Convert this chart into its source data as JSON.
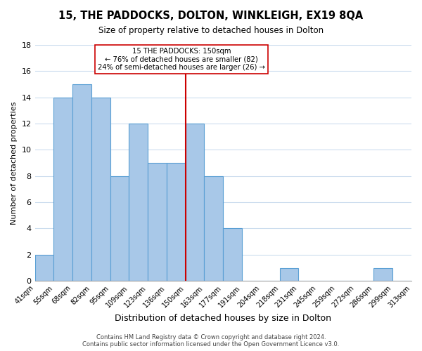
{
  "title": "15, THE PADDOCKS, DOLTON, WINKLEIGH, EX19 8QA",
  "subtitle": "Size of property relative to detached houses in Dolton",
  "xlabel": "Distribution of detached houses by size in Dolton",
  "ylabel": "Number of detached properties",
  "bin_labels": [
    "41sqm",
    "55sqm",
    "68sqm",
    "82sqm",
    "95sqm",
    "109sqm",
    "123sqm",
    "136sqm",
    "150sqm",
    "163sqm",
    "177sqm",
    "191sqm",
    "204sqm",
    "218sqm",
    "231sqm",
    "245sqm",
    "259sqm",
    "272sqm",
    "286sqm",
    "299sqm",
    "313sqm"
  ],
  "counts": [
    2,
    14,
    15,
    14,
    8,
    12,
    9,
    9,
    12,
    8,
    4,
    0,
    0,
    1,
    0,
    0,
    0,
    0,
    1,
    0
  ],
  "bar_color": "#a8c8e8",
  "bar_edge_color": "#5a9fd4",
  "highlight_index": 8,
  "highlight_line_color": "#cc0000",
  "annotation_line1": "15 THE PADDOCKS: 150sqm",
  "annotation_line2": "← 76% of detached houses are smaller (82)",
  "annotation_line3": "24% of semi-detached houses are larger (26) →",
  "annotation_box_edge_color": "#cc0000",
  "annotation_box_face_color": "#ffffff",
  "ylim": [
    0,
    18
  ],
  "yticks": [
    0,
    2,
    4,
    6,
    8,
    10,
    12,
    14,
    16,
    18
  ],
  "footer_text": "Contains HM Land Registry data © Crown copyright and database right 2024.\nContains public sector information licensed under the Open Government Licence v3.0.",
  "background_color": "#ffffff",
  "grid_color": "#ccddee"
}
